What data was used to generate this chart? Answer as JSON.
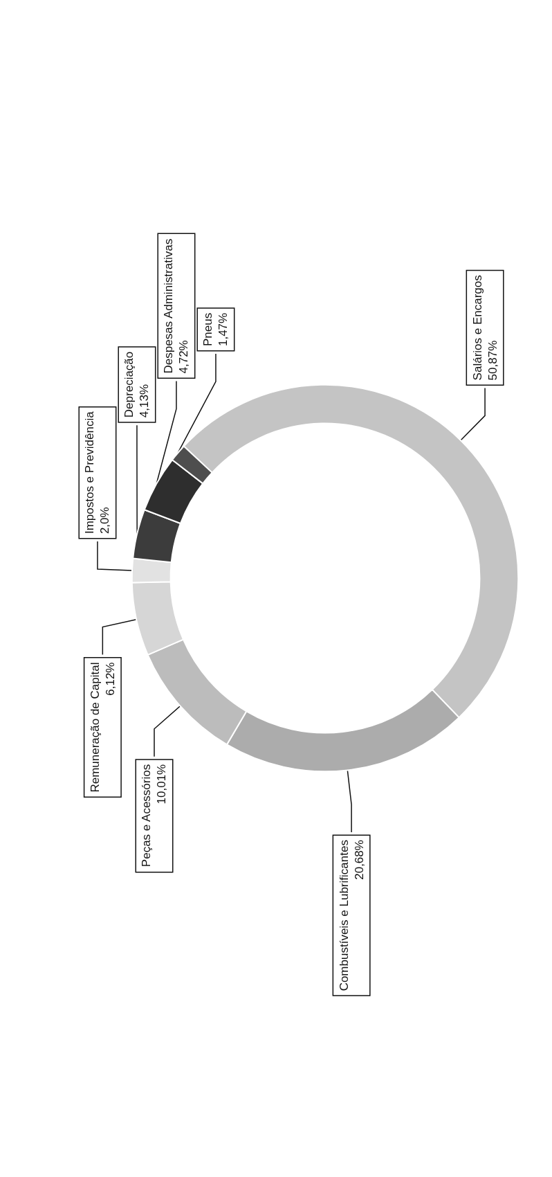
{
  "chart_data": {
    "type": "donut",
    "categories": [
      "Salários e Encargos",
      "Combustíveis e Lubrificantes",
      "Peças e Acessórios",
      "Remuneração de Capital",
      "Impostos e Previdência",
      "Depreciação",
      "Despesas Administrativas",
      "Pneus"
    ],
    "values": [
      50.87,
      20.68,
      10.01,
      6.12,
      2.0,
      4.13,
      4.72,
      1.47
    ],
    "colors": [
      "#c4c4c4",
      "#acacac",
      "#bcbcbc",
      "#d6d6d6",
      "#e2e2e2",
      "#3c3c3c",
      "#2e2e2e",
      "#4e4e4e"
    ],
    "value_labels": [
      "50,87%",
      "20,68%",
      "10,01%",
      "6,12%",
      "2,0%",
      "4,13%",
      "4,72%",
      "1,47%"
    ]
  }
}
